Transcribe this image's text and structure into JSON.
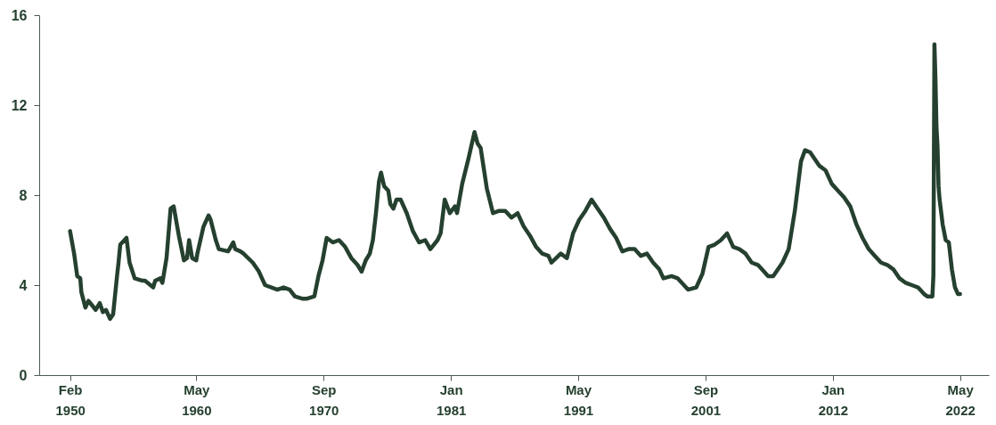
{
  "chart_data": {
    "type": "line",
    "x": [
      "1950-02",
      "1950-06",
      "1950-09",
      "1950-12",
      "1951-01",
      "1951-05",
      "1951-08",
      "1952-03",
      "1952-07",
      "1952-10",
      "1953-01",
      "1953-05",
      "1953-08",
      "1953-12",
      "1954-01",
      "1954-03",
      "1954-09",
      "1954-12",
      "1955-05",
      "1955-12",
      "1956-03",
      "1956-11",
      "1957-01",
      "1957-06",
      "1957-08",
      "1957-12",
      "1958-04",
      "1958-07",
      "1958-12",
      "1959-05",
      "1959-08",
      "1959-10",
      "1960-01",
      "1960-05",
      "1960-06",
      "1960-12",
      "1961-05",
      "1961-07",
      "1961-12",
      "1962-03",
      "1962-12",
      "1963-05",
      "1963-07",
      "1963-12",
      "1964-03",
      "1964-12",
      "1965-06",
      "1965-12",
      "1966-12",
      "1967-06",
      "1967-12",
      "1968-05",
      "1968-12",
      "1969-05",
      "1969-12",
      "1970-04",
      "1970-08",
      "1970-12",
      "1971-06",
      "1971-12",
      "1972-06",
      "1972-12",
      "1973-06",
      "1973-10",
      "1974-02",
      "1974-06",
      "1974-09",
      "1974-12",
      "1975-03",
      "1975-05",
      "1975-08",
      "1975-12",
      "1976-02",
      "1976-05",
      "1976-08",
      "1976-12",
      "1977-06",
      "1977-12",
      "1978-06",
      "1978-12",
      "1979-05",
      "1979-12",
      "1980-03",
      "1980-07",
      "1980-12",
      "1981-05",
      "1981-07",
      "1981-12",
      "1982-06",
      "1982-12",
      "1983-03",
      "1983-06",
      "1983-12",
      "1984-06",
      "1984-12",
      "1985-06",
      "1985-12",
      "1986-06",
      "1986-12",
      "1987-06",
      "1987-12",
      "1988-06",
      "1988-12",
      "1989-03",
      "1989-12",
      "1990-06",
      "1990-12",
      "1991-06",
      "1991-12",
      "1992-06",
      "1992-12",
      "1993-06",
      "1993-12",
      "1994-06",
      "1994-12",
      "1995-06",
      "1995-12",
      "1996-06",
      "1996-12",
      "1997-06",
      "1997-12",
      "1998-04",
      "1998-12",
      "1999-06",
      "1999-12",
      "2000-04",
      "2000-12",
      "2001-06",
      "2001-12",
      "2002-06",
      "2002-12",
      "2003-06",
      "2003-12",
      "2004-06",
      "2004-12",
      "2005-06",
      "2005-12",
      "2006-06",
      "2006-10",
      "2007-03",
      "2007-12",
      "2008-06",
      "2008-12",
      "2009-06",
      "2009-10",
      "2010-03",
      "2010-12",
      "2011-06",
      "2011-12",
      "2012-06",
      "2012-12",
      "2013-06",
      "2013-12",
      "2014-06",
      "2014-12",
      "2015-06",
      "2015-12",
      "2016-06",
      "2016-12",
      "2017-06",
      "2017-12",
      "2018-06",
      "2018-12",
      "2019-06",
      "2019-09",
      "2020-02",
      "2020-03",
      "2020-04",
      "2020-05",
      "2020-06",
      "2020-07",
      "2020-08",
      "2020-09",
      "2020-12",
      "2021-03",
      "2021-06",
      "2021-09",
      "2021-12",
      "2022-03",
      "2022-05"
    ],
    "series": [
      {
        "color": "#25402f",
        "values": [
          6.4,
          5.4,
          4.4,
          4.3,
          3.7,
          3.0,
          3.3,
          2.9,
          3.2,
          2.8,
          2.9,
          2.5,
          2.7,
          4.5,
          4.9,
          5.8,
          6.1,
          5.0,
          4.3,
          4.2,
          4.2,
          3.9,
          4.2,
          4.3,
          4.1,
          5.2,
          7.4,
          7.5,
          6.2,
          5.1,
          5.2,
          6.0,
          5.2,
          5.1,
          5.4,
          6.6,
          7.1,
          6.9,
          6.0,
          5.6,
          5.5,
          5.9,
          5.6,
          5.5,
          5.4,
          5.0,
          4.6,
          4.0,
          3.8,
          3.9,
          3.8,
          3.5,
          3.4,
          3.4,
          3.5,
          4.4,
          5.1,
          6.1,
          5.9,
          6.0,
          5.7,
          5.2,
          4.9,
          4.6,
          5.1,
          5.4,
          6.0,
          7.2,
          8.6,
          9.0,
          8.4,
          8.2,
          7.6,
          7.4,
          7.8,
          7.8,
          7.2,
          6.4,
          5.9,
          6.0,
          5.6,
          6.0,
          6.3,
          7.8,
          7.2,
          7.5,
          7.2,
          8.5,
          9.6,
          10.8,
          10.3,
          10.1,
          8.3,
          7.2,
          7.3,
          7.3,
          7.0,
          7.2,
          6.6,
          6.2,
          5.7,
          5.4,
          5.3,
          5.0,
          5.4,
          5.2,
          6.3,
          6.9,
          7.3,
          7.8,
          7.4,
          7.0,
          6.5,
          6.1,
          5.5,
          5.6,
          5.6,
          5.3,
          5.4,
          5.0,
          4.7,
          4.3,
          4.4,
          4.3,
          4.0,
          3.8,
          3.9,
          4.5,
          5.7,
          5.8,
          6.0,
          6.3,
          5.7,
          5.6,
          5.4,
          5.0,
          4.9,
          4.6,
          4.4,
          4.4,
          5.0,
          5.6,
          7.3,
          9.5,
          10.0,
          9.9,
          9.3,
          9.1,
          8.5,
          8.2,
          7.9,
          7.5,
          6.7,
          6.1,
          5.6,
          5.3,
          5.0,
          4.9,
          4.7,
          4.3,
          4.1,
          4.0,
          3.9,
          3.6,
          3.5,
          3.5,
          4.4,
          14.7,
          13.2,
          11.0,
          10.2,
          8.4,
          7.8,
          6.7,
          6.0,
          5.9,
          4.7,
          3.9,
          3.6,
          3.6
        ]
      }
    ],
    "xlim": [
      "1947-08",
      "2024-09"
    ],
    "xticks": [
      {
        "value": "1950-02",
        "label": "Feb 1950"
      },
      {
        "value": "1960-05",
        "label": "May 1960"
      },
      {
        "value": "1970-09",
        "label": "Sep 1970"
      },
      {
        "value": "1981-01",
        "label": "Jan 1981"
      },
      {
        "value": "1991-05",
        "label": "May 1991"
      },
      {
        "value": "2001-09",
        "label": "Sep 2001"
      },
      {
        "value": "2012-01",
        "label": "Jan 2012"
      },
      {
        "value": "2022-05",
        "label": "May 2022"
      }
    ],
    "ylim": [
      0,
      16
    ],
    "yticks": [
      0,
      4,
      8,
      12,
      16
    ]
  }
}
